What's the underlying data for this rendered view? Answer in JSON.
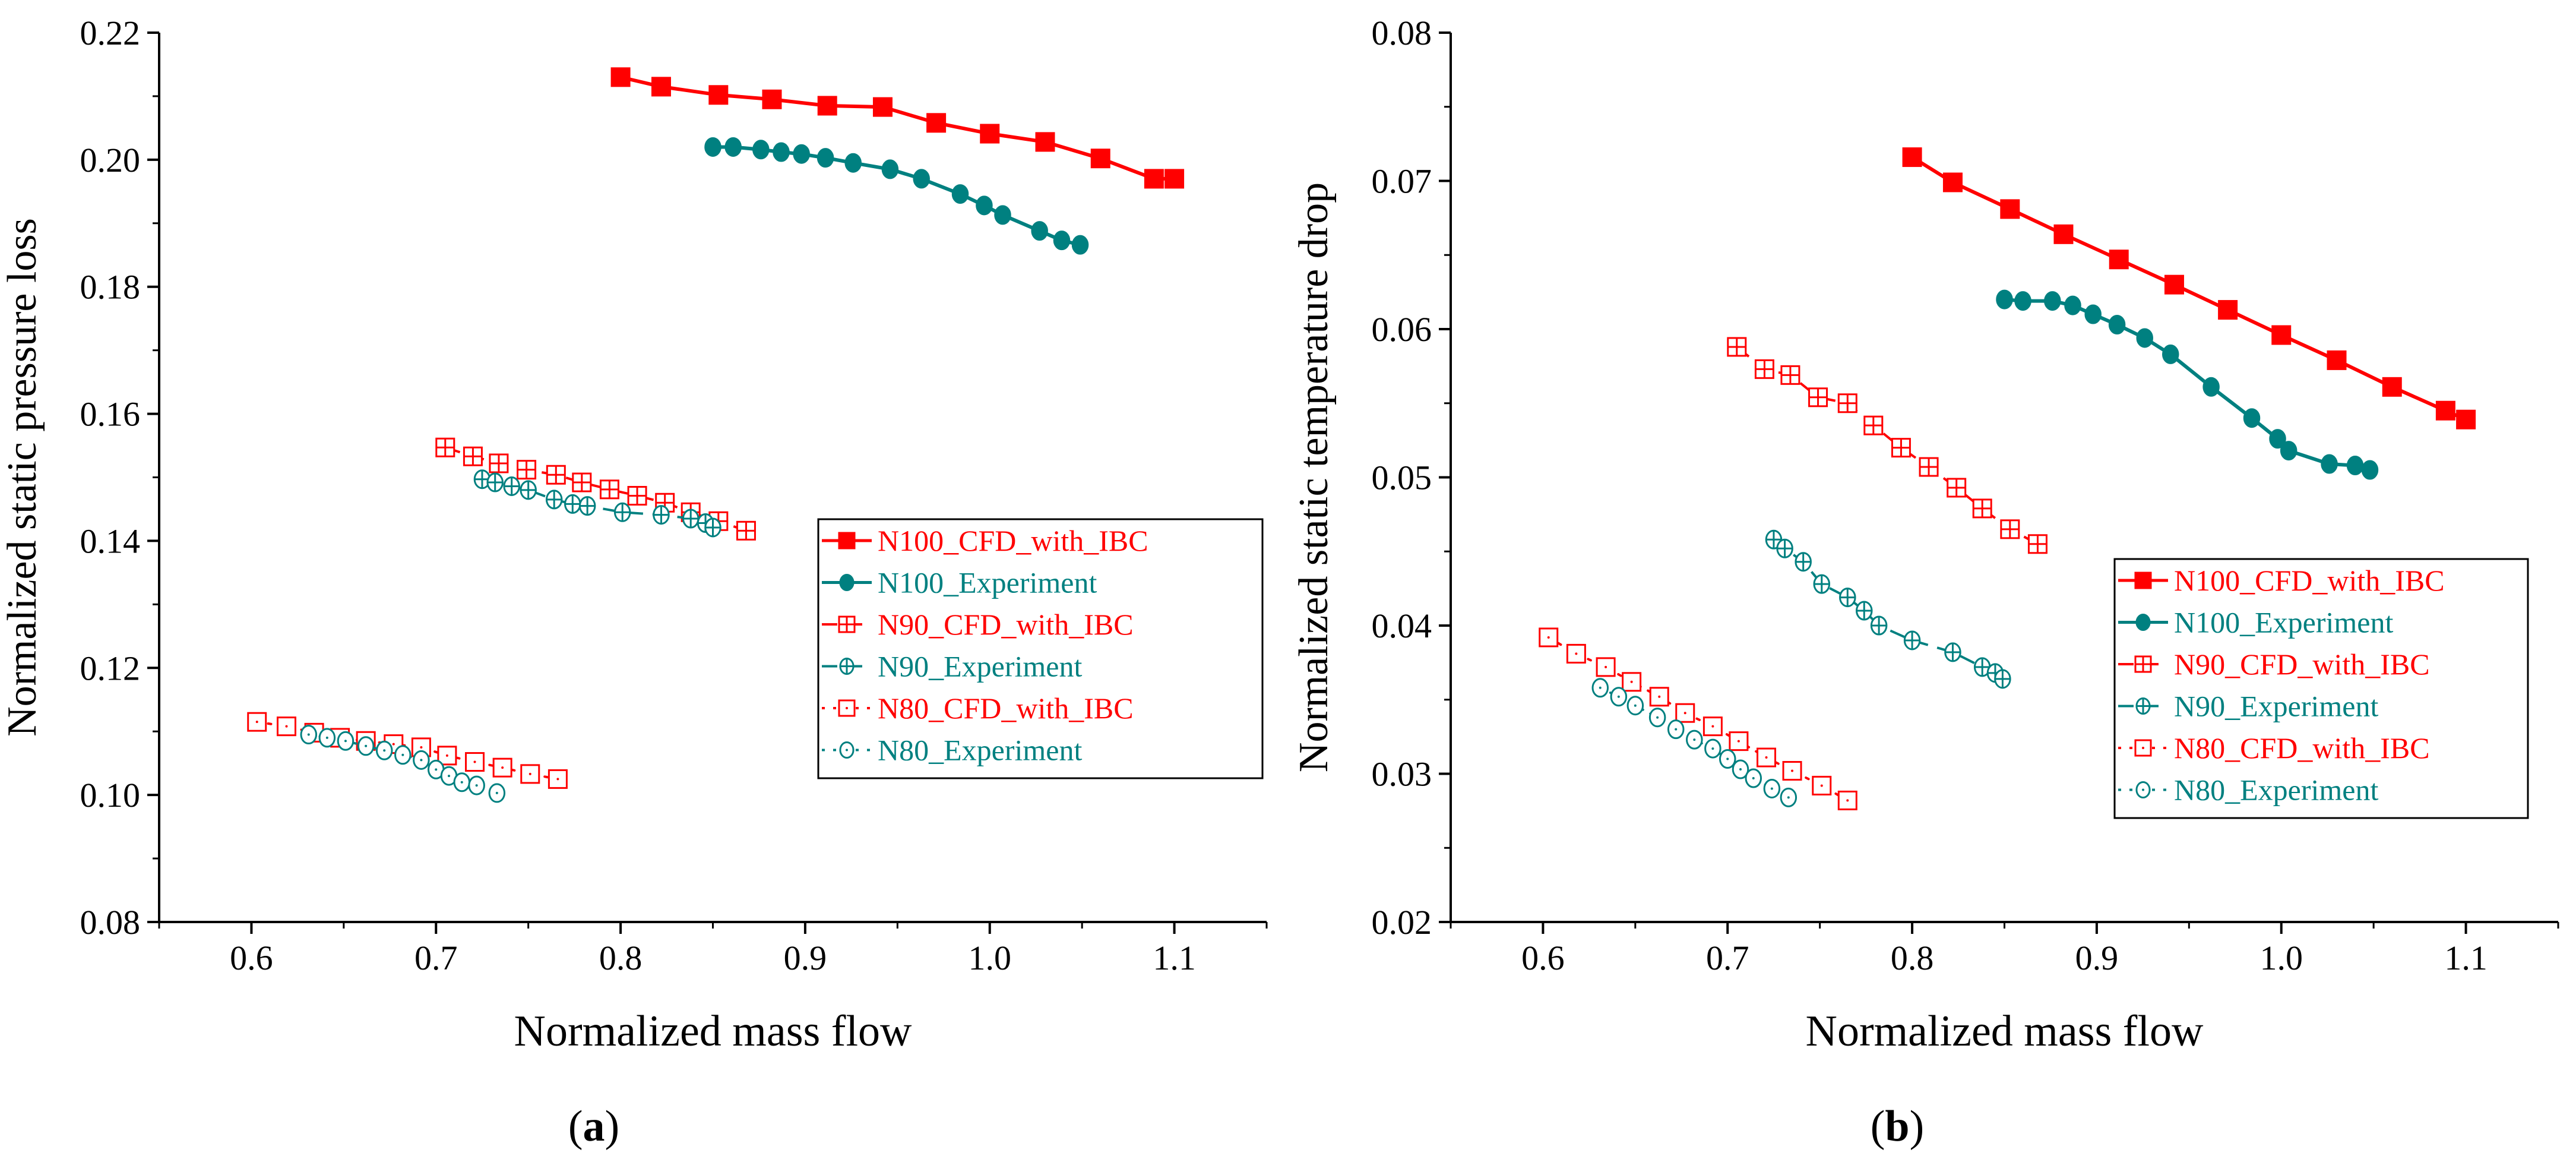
{
  "chart_data": [
    {
      "type": "line",
      "panel_label": "(a)",
      "panel_letter": "a",
      "xlabel": "Normalized mass flow",
      "ylabel": "Normalized static pressure loss",
      "xlim": [
        0.55,
        1.15
      ],
      "ylim": [
        0.08,
        0.22
      ],
      "xticks": [
        0.6,
        0.7,
        0.8,
        0.9,
        1.0,
        1.1
      ],
      "xtick_labels": [
        "0.6",
        "0.7",
        "0.8",
        "0.9",
        "1.0",
        "1.1"
      ],
      "yticks": [
        0.08,
        0.1,
        0.12,
        0.14,
        0.16,
        0.18,
        0.2,
        0.22
      ],
      "ytick_labels": [
        "0.08",
        "0.10",
        "0.12",
        "0.14",
        "0.16",
        "0.18",
        "0.20",
        "0.22"
      ],
      "grid": false,
      "legend_position": "right",
      "series": [
        {
          "name": "N100_CFD_with_IBC",
          "color": "#ff0000",
          "marker": "filled-square",
          "line": "solid",
          "x": [
            0.8,
            0.822,
            0.853,
            0.882,
            0.912,
            0.942,
            0.971,
            1.0,
            1.03,
            1.06,
            1.089,
            1.1
          ],
          "y": [
            0.213,
            0.2115,
            0.2102,
            0.2095,
            0.2085,
            0.2083,
            0.2058,
            0.2041,
            0.2028,
            0.2002,
            0.197,
            0.197
          ]
        },
        {
          "name": "N100_Experiment",
          "color": "#008080",
          "marker": "filled-circle",
          "line": "solid",
          "x": [
            0.85,
            0.861,
            0.876,
            0.887,
            0.898,
            0.911,
            0.926,
            0.946,
            0.963,
            0.984,
            0.997,
            1.007,
            1.027,
            1.039,
            1.049
          ],
          "y": [
            0.202,
            0.202,
            0.2016,
            0.2012,
            0.2009,
            0.2003,
            0.1995,
            0.1985,
            0.197,
            0.1946,
            0.1928,
            0.1913,
            0.1888,
            0.1873,
            0.1866
          ]
        },
        {
          "name": "N90_CFD_with_IBC",
          "color": "#ff0000",
          "marker": "cross-square",
          "line": "dashed",
          "x": [
            0.705,
            0.72,
            0.734,
            0.749,
            0.765,
            0.779,
            0.794,
            0.809,
            0.824,
            0.838,
            0.853,
            0.868
          ],
          "y": [
            0.1547,
            0.1533,
            0.1522,
            0.1512,
            0.1504,
            0.1492,
            0.1481,
            0.1471,
            0.146,
            0.1445,
            0.1431,
            0.1416
          ]
        },
        {
          "name": "N90_Experiment",
          "color": "#008080",
          "marker": "cross-circle",
          "line": "dashed",
          "x": [
            0.725,
            0.732,
            0.741,
            0.75,
            0.764,
            0.774,
            0.782,
            0.801,
            0.822,
            0.838,
            0.846,
            0.85
          ],
          "y": [
            0.1497,
            0.1492,
            0.1486,
            0.148,
            0.1465,
            0.1458,
            0.1455,
            0.1445,
            0.1441,
            0.1435,
            0.1428,
            0.1421
          ]
        },
        {
          "name": "N80_CFD_with_IBC",
          "color": "#ff0000",
          "marker": "dot-square",
          "line": "dotted",
          "x": [
            0.603,
            0.619,
            0.634,
            0.648,
            0.662,
            0.677,
            0.692,
            0.706,
            0.721,
            0.736,
            0.751,
            0.766
          ],
          "y": [
            0.1115,
            0.1108,
            0.1098,
            0.109,
            0.1085,
            0.108,
            0.1075,
            0.1062,
            0.1052,
            0.1043,
            0.1033,
            0.1025
          ]
        },
        {
          "name": "N80_Experiment",
          "color": "#008080",
          "marker": "dot-circle",
          "line": "dotted",
          "x": [
            0.631,
            0.641,
            0.651,
            0.662,
            0.672,
            0.682,
            0.692,
            0.7,
            0.707,
            0.714,
            0.722,
            0.733
          ],
          "y": [
            0.1095,
            0.109,
            0.1085,
            0.1077,
            0.107,
            0.1063,
            0.1055,
            0.104,
            0.103,
            0.102,
            0.1015,
            0.1003
          ]
        }
      ]
    },
    {
      "type": "line",
      "panel_label": "(b)",
      "panel_letter": "b",
      "xlabel": "Normalized mass flow",
      "ylabel": "Normalized static temperature drop",
      "xlim": [
        0.55,
        1.15
      ],
      "ylim": [
        0.02,
        0.08
      ],
      "xticks": [
        0.6,
        0.7,
        0.8,
        0.9,
        1.0,
        1.1
      ],
      "xtick_labels": [
        "0.6",
        "0.7",
        "0.8",
        "0.9",
        "1.0",
        "1.1"
      ],
      "yticks": [
        0.02,
        0.03,
        0.04,
        0.05,
        0.06,
        0.07,
        0.08
      ],
      "ytick_labels": [
        "0.02",
        "0.03",
        "0.04",
        "0.05",
        "0.06",
        "0.07",
        "0.08"
      ],
      "grid": false,
      "legend_position": "right",
      "series": [
        {
          "name": "N100_CFD_with_IBC",
          "color": "#ff0000",
          "marker": "filled-square",
          "line": "solid",
          "x": [
            0.8,
            0.822,
            0.853,
            0.882,
            0.912,
            0.942,
            0.971,
            1.0,
            1.03,
            1.06,
            1.089,
            1.1
          ],
          "y": [
            0.0716,
            0.0699,
            0.0681,
            0.0664,
            0.0647,
            0.063,
            0.0613,
            0.0596,
            0.0579,
            0.0561,
            0.0545,
            0.0539
          ]
        },
        {
          "name": "N100_Experiment",
          "color": "#008080",
          "marker": "filled-circle",
          "line": "solid",
          "x": [
            0.85,
            0.86,
            0.876,
            0.887,
            0.898,
            0.911,
            0.926,
            0.94,
            0.962,
            0.984,
            0.998,
            1.004,
            1.026,
            1.04,
            1.048
          ],
          "y": [
            0.062,
            0.0619,
            0.0619,
            0.0616,
            0.061,
            0.0603,
            0.0594,
            0.0583,
            0.0561,
            0.054,
            0.0526,
            0.0518,
            0.0509,
            0.0508,
            0.0505
          ]
        },
        {
          "name": "N90_CFD_with_IBC",
          "color": "#ff0000",
          "marker": "cross-square",
          "line": "dashed",
          "x": [
            0.705,
            0.72,
            0.734,
            0.749,
            0.765,
            0.779,
            0.794,
            0.809,
            0.824,
            0.838,
            0.853,
            0.868
          ],
          "y": [
            0.0588,
            0.0573,
            0.0569,
            0.0554,
            0.055,
            0.0535,
            0.052,
            0.0507,
            0.0493,
            0.0479,
            0.0465,
            0.0455
          ]
        },
        {
          "name": "N90_Experiment",
          "color": "#008080",
          "marker": "cross-circle",
          "line": "dashed",
          "x": [
            0.725,
            0.731,
            0.741,
            0.751,
            0.765,
            0.774,
            0.782,
            0.8,
            0.822,
            0.838,
            0.845,
            0.849
          ],
          "y": [
            0.0458,
            0.0452,
            0.0443,
            0.0428,
            0.0419,
            0.041,
            0.04,
            0.039,
            0.0382,
            0.0372,
            0.0368,
            0.0364
          ]
        },
        {
          "name": "N80_CFD_with_IBC",
          "color": "#ff0000",
          "marker": "dot-square",
          "line": "dotted",
          "x": [
            0.603,
            0.618,
            0.634,
            0.648,
            0.663,
            0.677,
            0.692,
            0.706,
            0.721,
            0.735,
            0.751,
            0.765
          ],
          "y": [
            0.0392,
            0.0381,
            0.0372,
            0.0362,
            0.0352,
            0.0341,
            0.0332,
            0.0322,
            0.0311,
            0.0302,
            0.0292,
            0.0282
          ]
        },
        {
          "name": "N80_Experiment",
          "color": "#008080",
          "marker": "dot-circle",
          "line": "dotted",
          "x": [
            0.631,
            0.641,
            0.65,
            0.662,
            0.672,
            0.682,
            0.692,
            0.7,
            0.707,
            0.714,
            0.724,
            0.733
          ],
          "y": [
            0.0358,
            0.0352,
            0.0346,
            0.0338,
            0.033,
            0.0323,
            0.0317,
            0.031,
            0.0303,
            0.0297,
            0.029,
            0.0284
          ]
        }
      ]
    }
  ]
}
